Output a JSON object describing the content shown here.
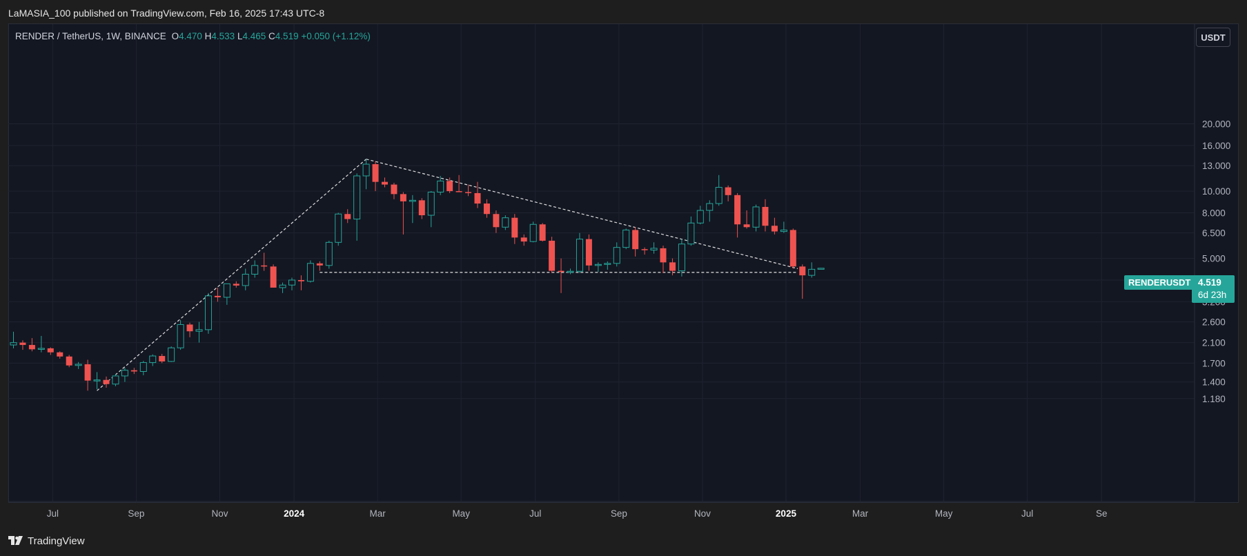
{
  "header": {
    "published_line": "LaMASIA_100 published on TradingView.com, Feb 16, 2025 17:43 UTC-8"
  },
  "legend": {
    "symbol_line": "RENDER / TetherUS, 1W, BINANCE",
    "open_label": "O",
    "open": "4.470",
    "high_label": "H",
    "high": "4.533",
    "low_label": "L",
    "low": "4.465",
    "close_label": "C",
    "close": "4.519",
    "change": "+0.050 (+1.12%)"
  },
  "currency_button": "USDT",
  "price_label": {
    "symbol": "RENDERUSDT",
    "price": "4.519",
    "countdown": "6d 23h"
  },
  "footer": {
    "brand": "TradingView"
  },
  "colors": {
    "up": "#26a69a",
    "down": "#ef5350",
    "background": "#131722",
    "grid": "#1f2330",
    "pattern_lines": "#e0e0e0"
  },
  "chart_data": {
    "type": "candlestick",
    "symbol": "RENDER / TetherUS",
    "interval": "1W",
    "exchange": "BINANCE",
    "yscale": "log",
    "ylim": [
      1.1,
      22.5
    ],
    "y_ticks": [
      "1.180",
      "1.400",
      "1.700",
      "2.100",
      "2.600",
      "3.200",
      "4.000",
      "5.000",
      "6.500",
      "8.000",
      "10.000",
      "13.000",
      "16.000",
      "20.000"
    ],
    "x_ticks": [
      {
        "label": "Jul",
        "index": 2,
        "bold": false
      },
      {
        "label": "Sep",
        "index": 11,
        "bold": false
      },
      {
        "label": "Nov",
        "index": 20,
        "bold": false
      },
      {
        "label": "2024",
        "index": 28,
        "bold": true
      },
      {
        "label": "Mar",
        "index": 37,
        "bold": false
      },
      {
        "label": "May",
        "index": 46,
        "bold": false
      },
      {
        "label": "Jul",
        "index": 54,
        "bold": false
      },
      {
        "label": "Sep",
        "index": 63,
        "bold": false
      },
      {
        "label": "Nov",
        "index": 72,
        "bold": false
      },
      {
        "label": "2025",
        "index": 81,
        "bold": true
      },
      {
        "label": "Mar",
        "index": 89,
        "bold": false
      },
      {
        "label": "May",
        "index": 98,
        "bold": false
      },
      {
        "label": "Jul",
        "index": 107,
        "bold": false
      },
      {
        "label": "Se",
        "index": 115,
        "bold": false
      }
    ],
    "candles": [
      [
        2.05,
        2.35,
        1.98,
        2.1
      ],
      [
        2.1,
        2.15,
        1.95,
        2.05
      ],
      [
        2.05,
        2.2,
        1.92,
        1.96
      ],
      [
        1.96,
        2.25,
        1.9,
        1.98
      ],
      [
        1.98,
        2.0,
        1.85,
        1.9
      ],
      [
        1.9,
        1.92,
        1.78,
        1.82
      ],
      [
        1.82,
        1.85,
        1.63,
        1.66
      ],
      [
        1.66,
        1.72,
        1.6,
        1.68
      ],
      [
        1.68,
        1.76,
        1.28,
        1.42
      ],
      [
        1.42,
        1.55,
        1.3,
        1.43
      ],
      [
        1.43,
        1.48,
        1.32,
        1.37
      ],
      [
        1.37,
        1.52,
        1.34,
        1.49
      ],
      [
        1.49,
        1.62,
        1.4,
        1.58
      ],
      [
        1.58,
        1.62,
        1.52,
        1.56
      ],
      [
        1.56,
        1.74,
        1.5,
        1.71
      ],
      [
        1.71,
        1.86,
        1.65,
        1.83
      ],
      [
        1.83,
        1.87,
        1.7,
        1.73
      ],
      [
        1.73,
        2.02,
        1.72,
        1.99
      ],
      [
        1.99,
        2.65,
        1.95,
        2.53
      ],
      [
        2.53,
        2.58,
        2.22,
        2.36
      ],
      [
        2.36,
        2.6,
        2.1,
        2.4
      ],
      [
        2.4,
        3.5,
        2.3,
        3.4
      ],
      [
        3.4,
        3.7,
        3.2,
        3.35
      ],
      [
        3.35,
        3.85,
        3.1,
        3.85
      ],
      [
        3.85,
        3.95,
        3.7,
        3.78
      ],
      [
        3.78,
        4.5,
        3.6,
        4.25
      ],
      [
        4.25,
        4.9,
        4.1,
        4.65
      ],
      [
        4.65,
        5.3,
        4.4,
        4.6
      ],
      [
        4.6,
        4.7,
        3.7,
        3.7
      ],
      [
        3.7,
        3.9,
        3.5,
        3.8
      ],
      [
        3.8,
        4.1,
        3.6,
        4.0
      ],
      [
        4.0,
        4.2,
        3.6,
        3.95
      ],
      [
        3.95,
        4.9,
        3.9,
        4.75
      ],
      [
        4.75,
        4.85,
        4.4,
        4.65
      ],
      [
        4.65,
        6.0,
        4.5,
        5.9
      ],
      [
        5.9,
        8.0,
        5.7,
        7.9
      ],
      [
        7.9,
        8.3,
        7.2,
        7.5
      ],
      [
        7.5,
        12.0,
        6.0,
        11.7
      ],
      [
        11.7,
        13.9,
        10.2,
        13.2
      ],
      [
        13.2,
        13.6,
        10.0,
        11.0
      ],
      [
        11.0,
        11.5,
        10.4,
        10.7
      ],
      [
        10.7,
        10.9,
        9.2,
        9.7
      ],
      [
        9.7,
        9.9,
        6.4,
        9.0
      ],
      [
        9.0,
        9.6,
        7.2,
        9.1
      ],
      [
        9.1,
        9.3,
        7.5,
        7.8
      ],
      [
        7.8,
        10.0,
        6.9,
        9.9
      ],
      [
        9.9,
        11.7,
        9.6,
        11.1
      ],
      [
        11.1,
        11.5,
        9.8,
        10.0
      ],
      [
        10.0,
        11.8,
        9.9,
        9.9
      ],
      [
        9.9,
        10.7,
        9.5,
        9.8
      ],
      [
        9.8,
        11.0,
        8.4,
        8.8
      ],
      [
        8.8,
        9.2,
        7.6,
        7.9
      ],
      [
        7.9,
        8.2,
        6.5,
        6.9
      ],
      [
        6.9,
        7.8,
        6.7,
        7.6
      ],
      [
        7.6,
        7.9,
        5.8,
        6.2
      ],
      [
        6.2,
        6.4,
        5.7,
        5.95
      ],
      [
        5.95,
        7.3,
        5.9,
        7.1
      ],
      [
        7.1,
        7.2,
        5.95,
        6.0
      ],
      [
        6.0,
        6.25,
        4.3,
        4.4
      ],
      [
        4.4,
        5.0,
        3.5,
        4.35
      ],
      [
        4.35,
        4.5,
        4.25,
        4.38
      ],
      [
        4.38,
        6.5,
        4.3,
        6.1
      ],
      [
        6.1,
        6.4,
        4.4,
        4.65
      ],
      [
        4.65,
        4.8,
        4.35,
        4.7
      ],
      [
        4.7,
        4.85,
        4.45,
        4.75
      ],
      [
        4.75,
        5.9,
        4.6,
        5.6
      ],
      [
        5.6,
        6.8,
        5.5,
        6.7
      ],
      [
        6.7,
        6.9,
        5.1,
        5.5
      ],
      [
        5.5,
        5.6,
        5.2,
        5.45
      ],
      [
        5.45,
        5.9,
        5.25,
        5.55
      ],
      [
        5.55,
        5.7,
        4.3,
        4.8
      ],
      [
        4.8,
        5.0,
        4.2,
        4.4
      ],
      [
        4.4,
        6.1,
        4.15,
        5.8
      ],
      [
        5.8,
        7.7,
        5.7,
        7.2
      ],
      [
        7.2,
        8.6,
        7.1,
        8.2
      ],
      [
        8.2,
        9.1,
        7.3,
        8.8
      ],
      [
        8.8,
        11.8,
        8.6,
        10.4
      ],
      [
        10.4,
        10.6,
        9.0,
        9.6
      ],
      [
        9.6,
        9.8,
        6.2,
        7.1
      ],
      [
        7.1,
        8.2,
        6.8,
        6.9
      ],
      [
        6.9,
        8.7,
        6.6,
        8.5
      ],
      [
        8.5,
        9.2,
        6.6,
        7.0
      ],
      [
        7.0,
        7.6,
        6.4,
        6.6
      ],
      [
        6.6,
        7.3,
        6.5,
        6.7
      ],
      [
        6.7,
        6.8,
        4.5,
        4.6
      ],
      [
        4.6,
        4.7,
        3.3,
        4.2
      ],
      [
        4.2,
        4.8,
        4.1,
        4.47
      ],
      [
        4.47,
        4.533,
        4.465,
        4.519
      ]
    ],
    "trendlines": [
      {
        "from": [
          9.0,
          1.28
        ],
        "to": [
          38.0,
          13.9
        ]
      },
      {
        "from": [
          38.0,
          13.9
        ],
        "to": [
          84.5,
          4.5
        ]
      },
      {
        "from": [
          33.0,
          4.33
        ],
        "to": [
          84.5,
          4.33
        ]
      }
    ],
    "grid": true,
    "legend_position": "top-left"
  }
}
